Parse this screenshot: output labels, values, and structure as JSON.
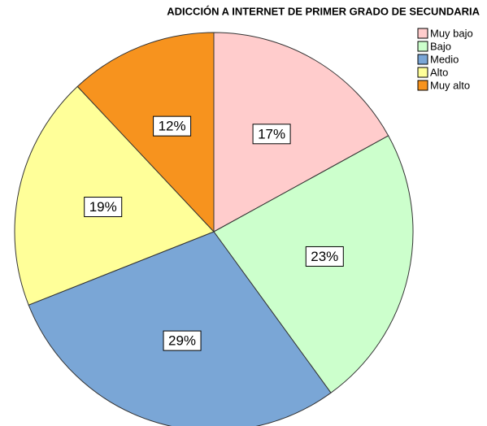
{
  "chart_data": {
    "type": "pie",
    "title": "ADICCIÓN A INTERNET DE PRIMER GRADO DE SECUNDARIA",
    "categories": [
      "Muy bajo",
      "Bajo",
      "Medio",
      "Alto",
      "Muy alto"
    ],
    "values": [
      17,
      23,
      29,
      19,
      12
    ],
    "value_labels": [
      "17%",
      "23%",
      "29%",
      "19%",
      "12%"
    ],
    "colors": [
      "#ffcccc",
      "#ccffcc",
      "#7aa6d6",
      "#ffff99",
      "#f7931e"
    ],
    "legend": "upper right"
  }
}
